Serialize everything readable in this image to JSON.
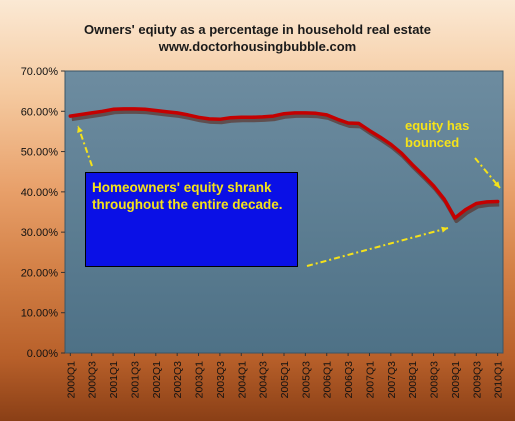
{
  "titles": {
    "line1": "Owners' eqiuty as a percentage in household real estate",
    "line2": "www.doctorhousingbubble.com"
  },
  "annotations": {
    "box_text": "Homeowners' equity shrank throughout the entire decade.",
    "right_text": "equity has bounced"
  },
  "colors": {
    "line": "#c40000",
    "line_shadow": "#5a1f10",
    "plot_bg": "#5f8196",
    "annotation_text": "#f5e21a",
    "box_bg": "#0a10e6",
    "arrow": "#f5e21a"
  },
  "chart_data": {
    "type": "line",
    "title": "Owners' eqiuty as a percentage in household real estate",
    "subtitle": "www.doctorhousingbubble.com",
    "xlabel": "",
    "ylabel": "",
    "ylim": [
      0,
      70
    ],
    "yticks": [
      "0.00%",
      "10.00%",
      "20.00%",
      "30.00%",
      "40.00%",
      "50.00%",
      "60.00%",
      "70.00%"
    ],
    "grid": false,
    "legend": "none",
    "x": [
      "2000Q1",
      "2000Q2",
      "2000Q3",
      "2000Q4",
      "2001Q1",
      "2001Q2",
      "2001Q3",
      "2001Q4",
      "2002Q1",
      "2002Q2",
      "2002Q3",
      "2002Q4",
      "2003Q1",
      "2003Q2",
      "2003Q3",
      "2003Q4",
      "2004Q1",
      "2004Q2",
      "2004Q3",
      "2004Q4",
      "2005Q1",
      "2005Q2",
      "2005Q3",
      "2005Q4",
      "2006Q1",
      "2006Q2",
      "2006Q3",
      "2006Q4",
      "2007Q1",
      "2007Q2",
      "2007Q3",
      "2007Q4",
      "2008Q1",
      "2008Q2",
      "2008Q3",
      "2008Q4",
      "2009Q1",
      "2009Q2",
      "2009Q3",
      "2009Q4",
      "2010Q1"
    ],
    "xtick_labels": [
      "2000Q1",
      "2000Q3",
      "2001Q1",
      "2001Q3",
      "2002Q1",
      "2002Q3",
      "2003Q1",
      "2003Q3",
      "2004Q1",
      "2004Q3",
      "2005Q1",
      "2005Q3",
      "2006Q1",
      "2006Q3",
      "2007Q1",
      "2007Q3",
      "2008Q1",
      "2008Q3",
      "2009Q1",
      "2009Q3",
      "2010Q1"
    ],
    "series": [
      {
        "values": [
          58.8,
          59.2,
          59.6,
          60.0,
          60.5,
          60.6,
          60.6,
          60.5,
          60.2,
          59.9,
          59.6,
          59.1,
          58.5,
          58.1,
          58.0,
          58.4,
          58.5,
          58.5,
          58.6,
          58.8,
          59.4,
          59.6,
          59.6,
          59.5,
          59.1,
          58.0,
          57.1,
          57.0,
          55.2,
          53.6,
          51.8,
          49.6,
          46.8,
          44.2,
          41.5,
          38.2,
          33.5,
          35.6,
          37.1,
          37.5,
          37.6
        ]
      }
    ]
  }
}
